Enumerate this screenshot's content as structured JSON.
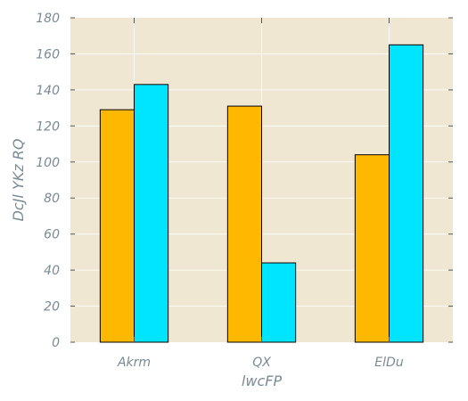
{
  "chart_data": {
    "type": "bar",
    "title": "",
    "xlabel": "lwcFP",
    "ylabel": "DcJl YKz RQ",
    "categories": [
      "Akrm",
      "QX",
      "ElDu"
    ],
    "series": [
      {
        "color": "#ffb800",
        "values": [
          129,
          131,
          104
        ]
      },
      {
        "color": "#00e5ff",
        "values": [
          143,
          44,
          165
        ]
      }
    ],
    "ylim": [
      0,
      180
    ],
    "yticks": [
      0,
      20,
      40,
      60,
      80,
      100,
      120,
      140,
      160,
      180
    ],
    "grid": true,
    "legend": "none",
    "colors": {
      "background": "#efe7d2",
      "grid": "#ffffff",
      "text": "#7a8a95",
      "bar_edge": "#000000",
      "tick_mark": "#555555"
    }
  }
}
